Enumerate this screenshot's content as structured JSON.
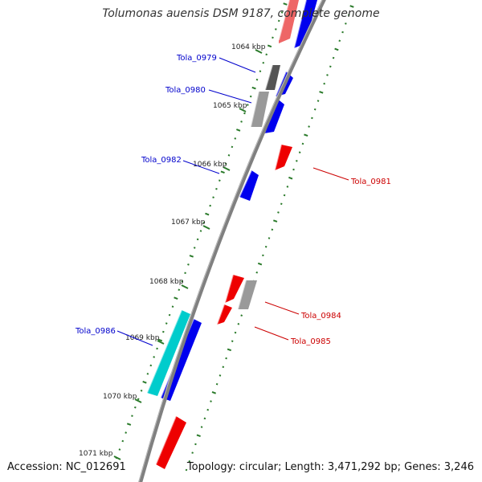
{
  "title": "Tolumonas auensis DSM 9187, complete genome",
  "footer": {
    "accession": "Accession: NC_012691",
    "summary": "Topology: circular; Length: 3,471,292 bp; Genes: 3,246"
  },
  "colors": {
    "backbone": "#808080",
    "tick": "#2a7a2a",
    "forward_label": "#0000cc",
    "reverse_label": "#cc0000",
    "blue": "#0000ee",
    "red": "#ee0000",
    "cyan": "#00cccc",
    "grey": "#999999",
    "dark_grey": "#555555",
    "pink": "#ee6666"
  },
  "scale_labels": [
    "1064 kbp",
    "1065 kbp",
    "1066 kbp",
    "1067 kbp",
    "1068 kbp",
    "1069 kbp",
    "1070 kbp",
    "1071 kbp"
  ],
  "gene_labels": [
    {
      "text": "Tola_0979",
      "strand": "forward"
    },
    {
      "text": "Tola_0980",
      "strand": "forward"
    },
    {
      "text": "Tola_0982",
      "strand": "forward"
    },
    {
      "text": "Tola_0986",
      "strand": "forward"
    },
    {
      "text": "Tola_0981",
      "strand": "reverse"
    },
    {
      "text": "Tola_0984",
      "strand": "reverse"
    },
    {
      "text": "Tola_0985",
      "strand": "reverse"
    }
  ],
  "features": [
    {
      "kind": "pink",
      "lane": 1
    },
    {
      "kind": "blue",
      "lane": 2
    },
    {
      "kind": "dark_grey",
      "lane": 1
    },
    {
      "kind": "blue",
      "lane": 2
    },
    {
      "kind": "grey",
      "lane": 1
    },
    {
      "kind": "blue",
      "lane": 2
    },
    {
      "kind": "red",
      "lane": 3
    },
    {
      "kind": "blue",
      "lane": 2
    },
    {
      "kind": "red",
      "lane": 3
    },
    {
      "kind": "grey",
      "lane": 4
    },
    {
      "kind": "red",
      "lane": 3
    },
    {
      "kind": "cyan",
      "lane": 1
    },
    {
      "kind": "blue",
      "lane": 2
    },
    {
      "kind": "red",
      "lane": 3
    }
  ]
}
